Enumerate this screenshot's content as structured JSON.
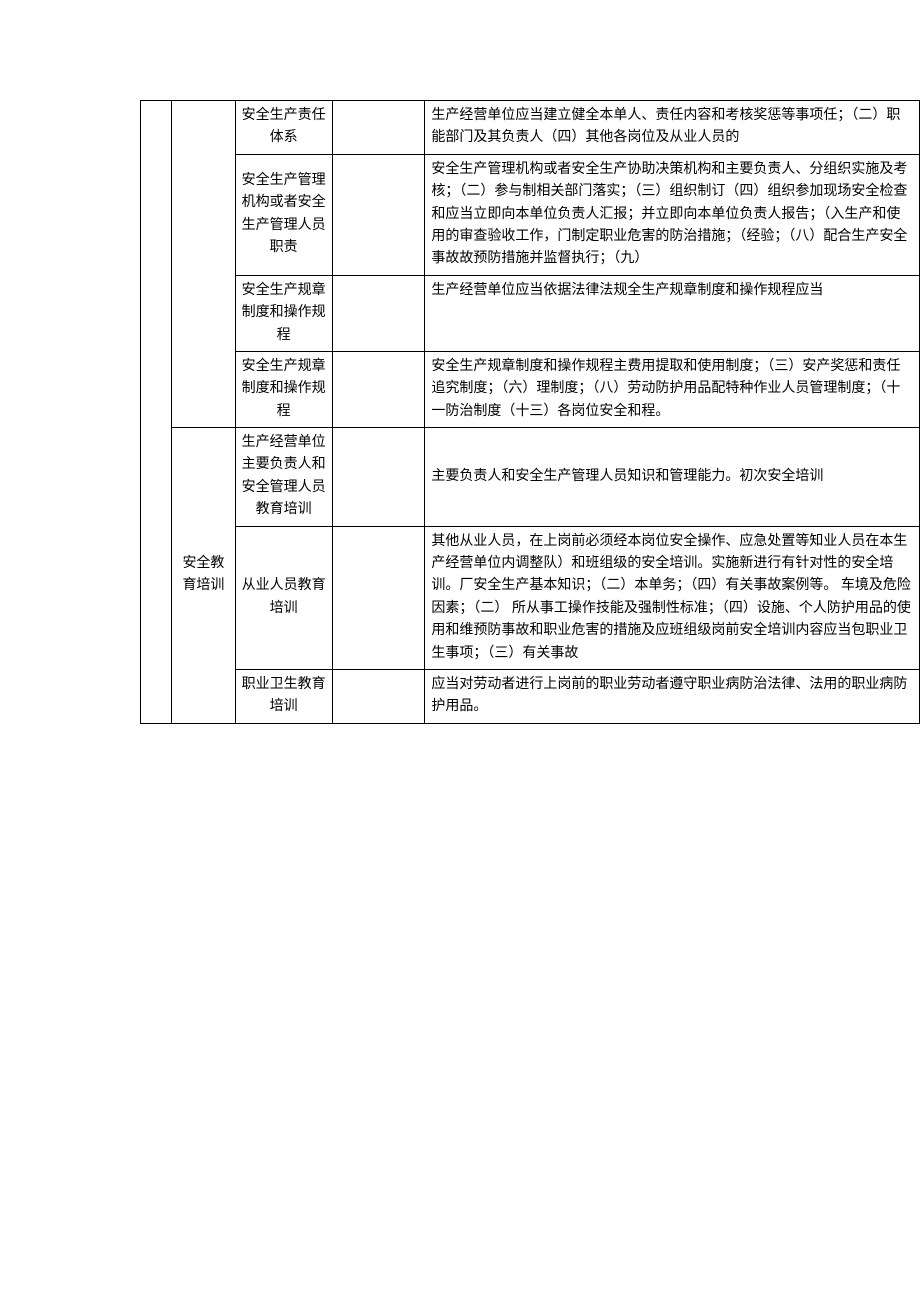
{
  "table": {
    "section_left_blank": "",
    "cat1_label": "",
    "cat2_label": "安全教育培训",
    "rows": [
      {
        "c": "安全生产责任体系",
        "d": "",
        "e": "生产经营单位应当建立健全本单人、责任内容和考核奖惩等事项任；（二）职能部门及其负责人（四）其他各岗位及从业人员的"
      },
      {
        "c": "安全生产管理机构或者安全生产管理人员职责",
        "d": "",
        "e": "安全生产管理机构或者安全生产协助决策机构和主要负责人、分组织实施及考核；（二）参与制相关部门落实；（三）组织制订（四）组织参加现场安全检查和应当立即向本单位负责人汇报；并立即向本单位负责人报告；（入生产和使用的审查验收工作，门制定职业危害的防治措施；（经验；（八）配合生产安全事故故预防措施并监督执行；（九）"
      },
      {
        "c": "安全生产规章制度和操作规程",
        "d": "",
        "e": "生产经营单位应当依据法律法规全生产规章制度和操作规程应当"
      },
      {
        "c": "安全生产规章制度和操作规程",
        "d": "",
        "e": "安全生产规章制度和操作规程主费用提取和使用制度；（三）安产奖惩和责任追究制度；（六）理制度；（八）劳动防护用品配特种作业人员管理制度；（十一防治制度（十三）各岗位安全和程。"
      },
      {
        "c": "生产经营单位主要负责人和安全管理人员教育培训",
        "d": "",
        "e": "主要负责人和安全生产管理人员知识和管理能力。初次安全培训"
      },
      {
        "c": "从业人员教育培训",
        "d": "",
        "e": "其他从业人员，在上岗前必须经本岗位安全操作、应急处置等知业人员在本生产经营单位内调整队）和班组级的安全培训。实施新进行有针对性的安全培训。厂安全生产基本知识；（二）本单务；（四）有关事故案例等。 车境及危险因素；（二） 所从事工操作技能及强制性标准；（四）设施、个人防护用品的使用和维预防事故和职业危害的措施及应班组级岗前安全培训内容应当包职业卫生事项；（三）有关事故"
      },
      {
        "c": "职业卫生教育培训",
        "d": "",
        "e": "应当对劳动者进行上岗前的职业劳动者遵守职业病防治法律、法用的职业病防护用品。"
      }
    ]
  }
}
